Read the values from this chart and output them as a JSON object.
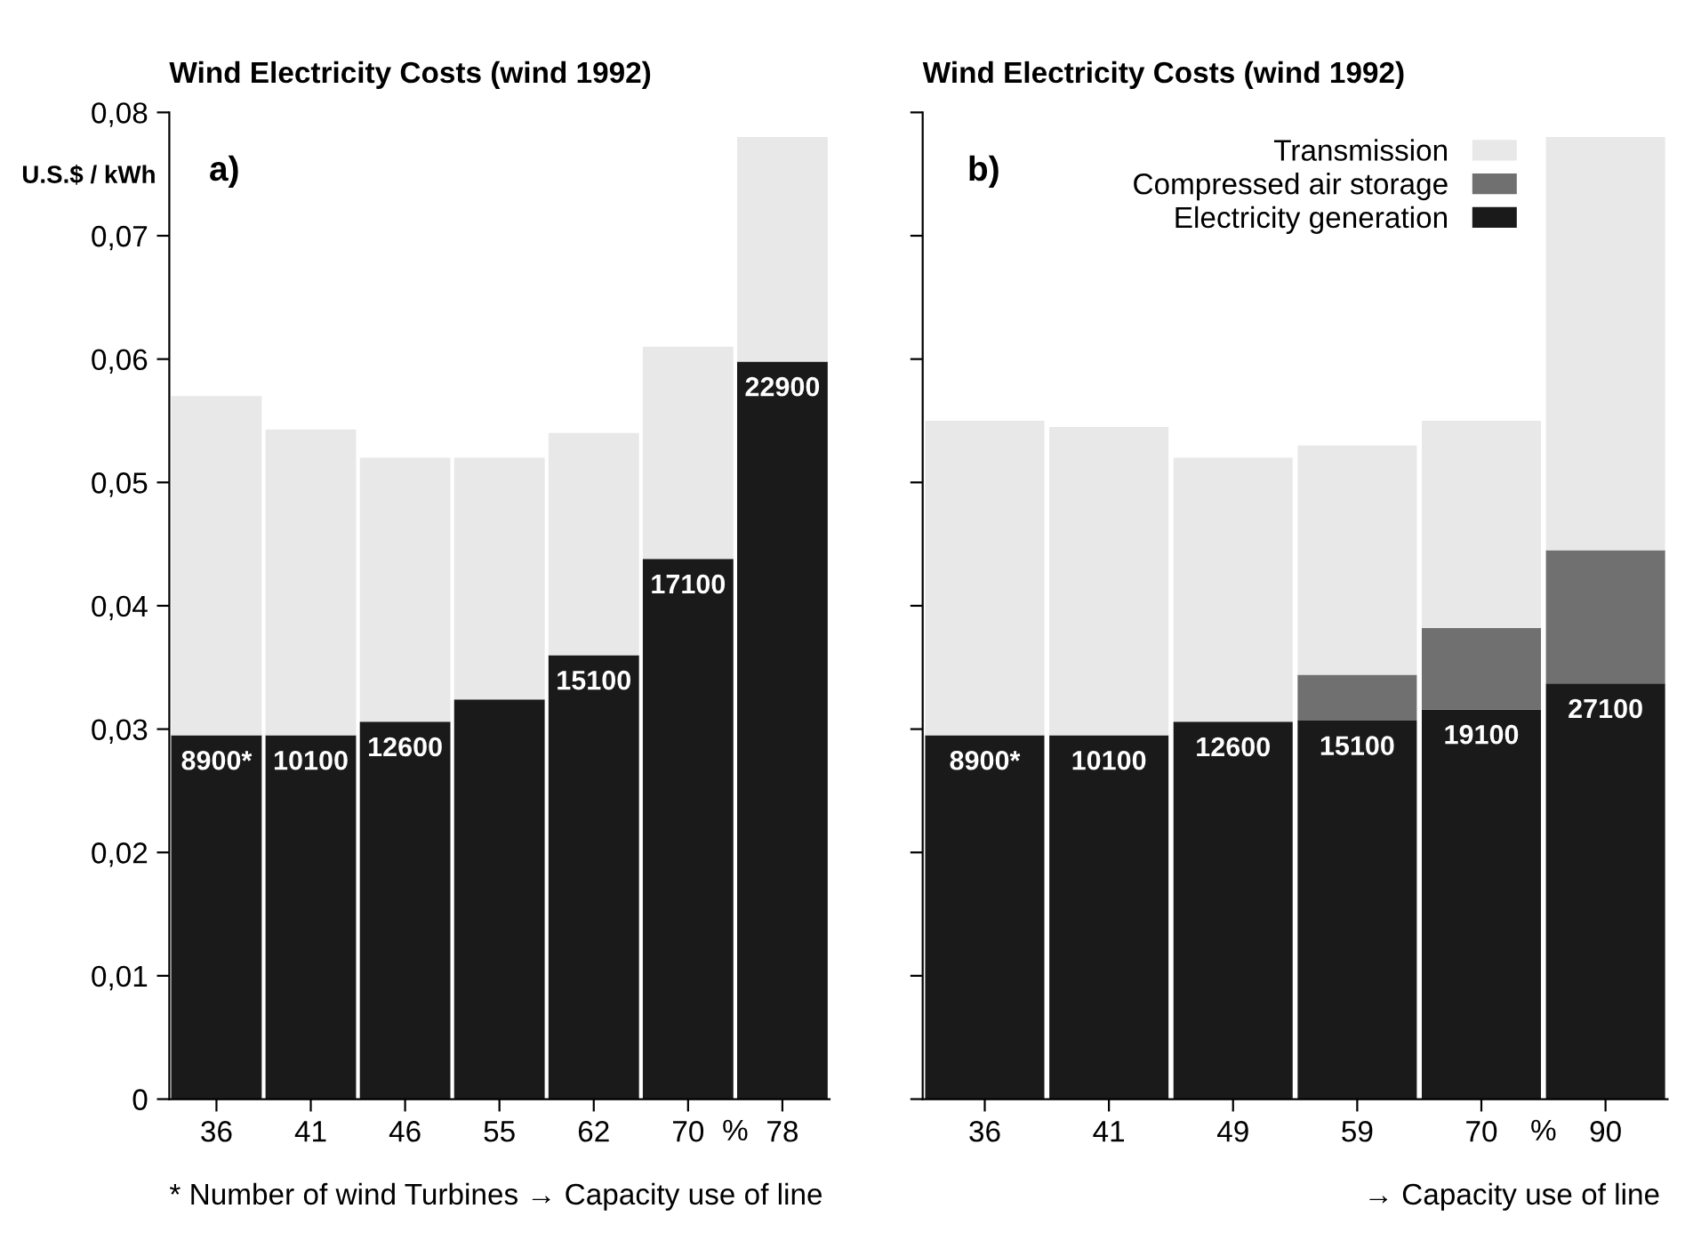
{
  "chart_data": [
    {
      "type": "bar",
      "stacked": true,
      "title": "Wind Electricity Costs (wind 1992)",
      "ylabel": "U.S.$ / kWh",
      "xlabel": "→ Capacity use of line",
      "categories": [
        "36",
        "41",
        "46",
        "55",
        "62",
        "70",
        "78"
      ],
      "series": [
        {
          "color": "#1a1a1a",
          "values": [
            0.0295,
            0.0295,
            0.0306,
            0.0324,
            0.036,
            0.0438,
            0.0598
          ]
        },
        {
          "color": "#e8e8e8",
          "values": [
            0.0275,
            0.0248,
            0.0214,
            0.0196,
            0.018,
            0.0172,
            0.0182
          ]
        }
      ],
      "ylim": [
        0,
        0.08
      ],
      "yticks": [
        {
          "value": 0,
          "label": "0"
        },
        {
          "value": 0.01,
          "label": "0,01"
        },
        {
          "value": 0.02,
          "label": "0,02"
        },
        {
          "value": 0.03,
          "label": "0,03"
        },
        {
          "value": 0.04,
          "label": "0,04"
        },
        {
          "value": 0.05,
          "label": "0,05"
        },
        {
          "value": 0.06,
          "label": "0,06"
        },
        {
          "value": 0.07,
          "label": "0,07"
        },
        {
          "value": 0.08,
          "label": "0,08"
        }
      ],
      "legend": false,
      "grid": false,
      "annotations": [
        "a)",
        "* Number of wind Turbines",
        "%",
        {
          "text": "8900*",
          "x": "36",
          "y": 0.0295
        },
        {
          "text": "10100",
          "x": "41",
          "y": 0.0295
        },
        {
          "text": "12600",
          "x": "46",
          "y": 0.0306
        },
        {
          "text": "15100",
          "x": "62",
          "y": 0.036
        },
        {
          "text": "17100",
          "x": "70",
          "y": 0.0438
        },
        {
          "text": "22900",
          "x": "78",
          "y": 0.0598
        }
      ]
    },
    {
      "type": "bar",
      "stacked": true,
      "title": "Wind Electricity Costs (wind 1992)",
      "xlabel": "→ Capacity use of line",
      "categories": [
        "36",
        "41",
        "49",
        "59",
        "70",
        "90"
      ],
      "series": [
        {
          "name": "Electricity generation",
          "color": "#1a1a1a",
          "values": [
            0.0295,
            0.0295,
            0.0306,
            0.0307,
            0.0316,
            0.0337
          ]
        },
        {
          "name": "Compressed air storage",
          "color": "#707070",
          "values": [
            0,
            0,
            0,
            0.0037,
            0.0066,
            0.0108
          ]
        },
        {
          "name": "Transmission",
          "color": "#e8e8e8",
          "values": [
            0.0255,
            0.025,
            0.0214,
            0.0186,
            0.0168,
            0.0335
          ]
        }
      ],
      "ylim": [
        0,
        0.08
      ],
      "yticks": [
        {
          "value": 0,
          "label": null
        },
        {
          "value": 0.01,
          "label": null
        },
        {
          "value": 0.02,
          "label": null
        },
        {
          "value": 0.03,
          "label": null
        },
        {
          "value": 0.04,
          "label": null
        },
        {
          "value": 0.05,
          "label": null
        },
        {
          "value": 0.06,
          "label": null
        },
        {
          "value": 0.07,
          "label": null
        },
        {
          "value": 0.08,
          "label": null
        }
      ],
      "tick_labels": "x",
      "legend": "top right",
      "grid": false,
      "annotations": [
        "b)",
        "%",
        {
          "text": "8900*",
          "x": "36",
          "y": 0.0295
        },
        {
          "text": "10100",
          "x": "41",
          "y": 0.0295
        },
        {
          "text": "12600",
          "x": "49",
          "y": 0.0306
        },
        {
          "text": "15100",
          "x": "59",
          "y": 0.0307
        },
        {
          "text": "19100",
          "x": "70",
          "y": 0.0316
        },
        {
          "text": "27100",
          "x": "90",
          "y": 0.0337
        }
      ]
    }
  ]
}
